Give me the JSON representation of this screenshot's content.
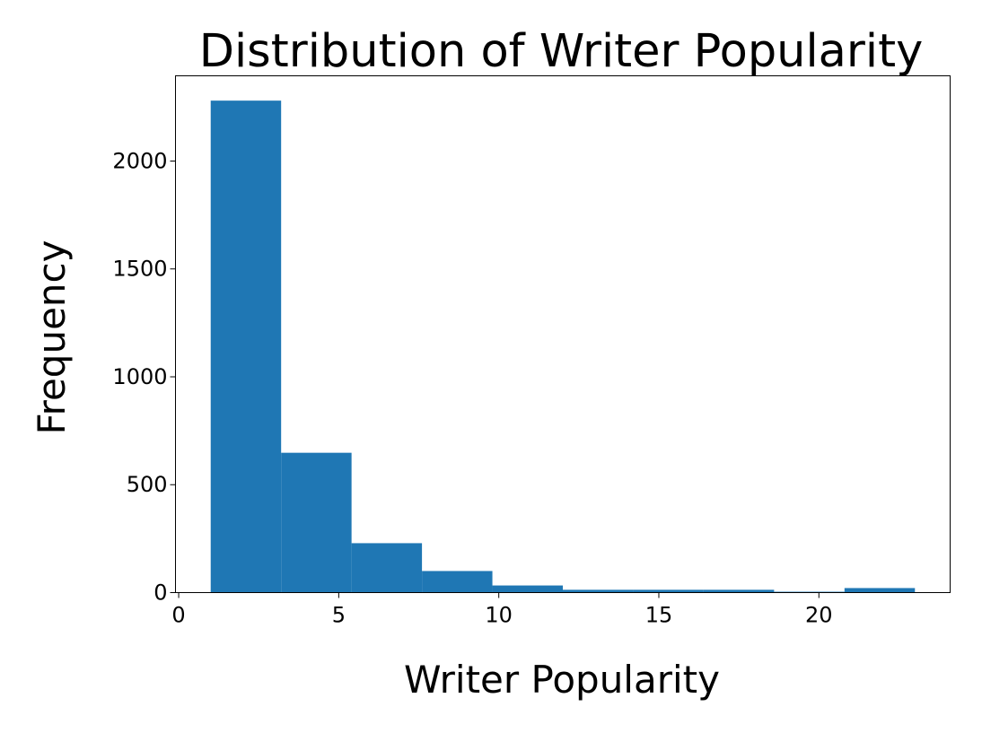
{
  "chart_data": {
    "type": "bar",
    "title": "Distribution of Writer Popularity",
    "xlabel": "Writer Popularity",
    "ylabel": "Frequency",
    "xlim": [
      -0.1,
      24.1
    ],
    "ylim": [
      0,
      2395
    ],
    "grid": false,
    "bar_color": "#1f77b4",
    "bins": [
      {
        "x0": 1.0,
        "x1": 3.2,
        "value": 2280
      },
      {
        "x0": 3.2,
        "x1": 5.4,
        "value": 648
      },
      {
        "x0": 5.4,
        "x1": 7.6,
        "value": 229
      },
      {
        "x0": 7.6,
        "x1": 9.8,
        "value": 100
      },
      {
        "x0": 9.8,
        "x1": 12.0,
        "value": 33
      },
      {
        "x0": 12.0,
        "x1": 14.2,
        "value": 13
      },
      {
        "x0": 14.2,
        "x1": 16.4,
        "value": 13
      },
      {
        "x0": 16.4,
        "x1": 18.6,
        "value": 13
      },
      {
        "x0": 18.6,
        "x1": 20.8,
        "value": 4
      },
      {
        "x0": 20.8,
        "x1": 23.0,
        "value": 21
      }
    ],
    "x_ticks": [
      {
        "value": 0,
        "label": "0"
      },
      {
        "value": 5,
        "label": "5"
      },
      {
        "value": 10,
        "label": "10"
      },
      {
        "value": 15,
        "label": "15"
      },
      {
        "value": 20,
        "label": "20"
      }
    ],
    "y_ticks": [
      {
        "value": 0,
        "label": "0"
      },
      {
        "value": 500,
        "label": "500"
      },
      {
        "value": 1000,
        "label": "1000"
      },
      {
        "value": 1500,
        "label": "1500"
      },
      {
        "value": 2000,
        "label": "2000"
      }
    ]
  }
}
